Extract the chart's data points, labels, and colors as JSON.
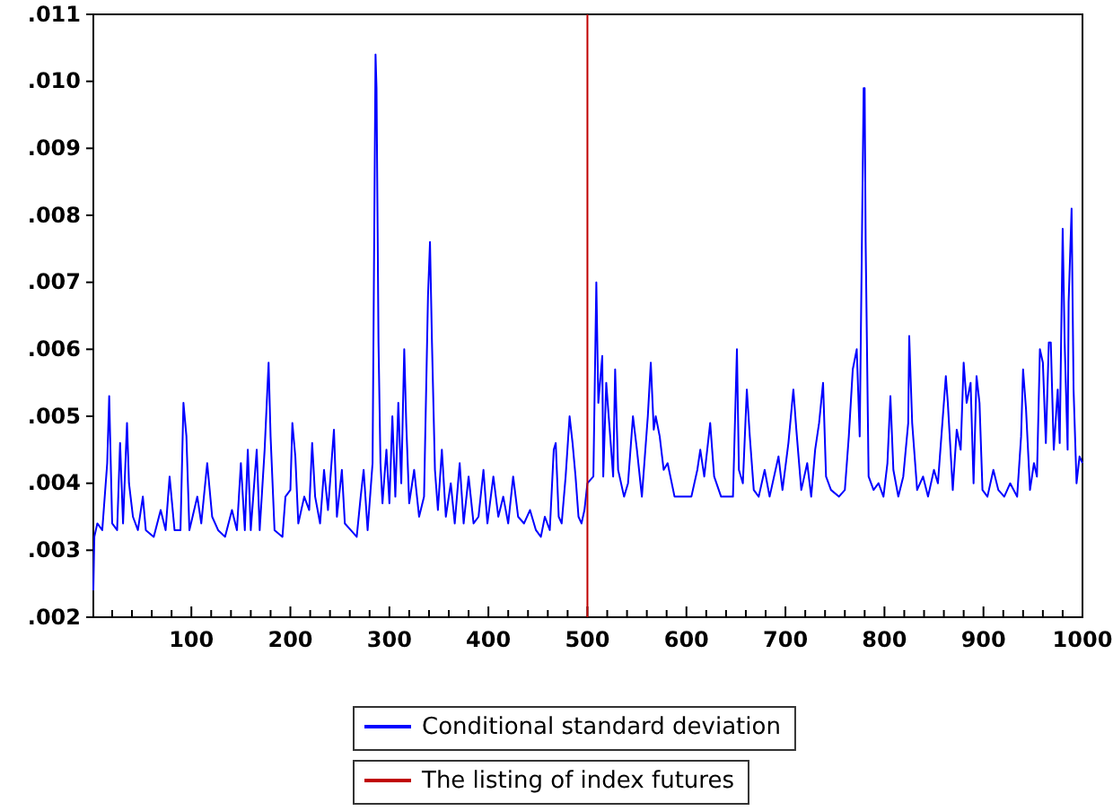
{
  "chart_data": {
    "type": "line",
    "xlim": [
      1,
      1000
    ],
    "ylim": [
      0.002,
      0.011
    ],
    "xticks": [
      {
        "value": 20,
        "label": null
      },
      {
        "value": 40,
        "label": null
      },
      {
        "value": 60,
        "label": null
      },
      {
        "value": 80,
        "label": null
      },
      100,
      {
        "value": 120,
        "label": null
      },
      {
        "value": 140,
        "label": null
      },
      {
        "value": 160,
        "label": null
      },
      {
        "value": 180,
        "label": null
      },
      200,
      {
        "value": 220,
        "label": null
      },
      {
        "value": 240,
        "label": null
      },
      {
        "value": 260,
        "label": null
      },
      {
        "value": 280,
        "label": null
      },
      300,
      {
        "value": 320,
        "label": null
      },
      {
        "value": 340,
        "label": null
      },
      {
        "value": 360,
        "label": null
      },
      {
        "value": 380,
        "label": null
      },
      400,
      {
        "value": 420,
        "label": null
      },
      {
        "value": 440,
        "label": null
      },
      {
        "value": 460,
        "label": null
      },
      {
        "value": 480,
        "label": null
      },
      500,
      {
        "value": 520,
        "label": null
      },
      {
        "value": 540,
        "label": null
      },
      {
        "value": 560,
        "label": null
      },
      {
        "value": 580,
        "label": null
      },
      600,
      {
        "value": 620,
        "label": null
      },
      {
        "value": 640,
        "label": null
      },
      {
        "value": 660,
        "label": null
      },
      {
        "value": 680,
        "label": null
      },
      700,
      {
        "value": 720,
        "label": null
      },
      {
        "value": 740,
        "label": null
      },
      {
        "value": 760,
        "label": null
      },
      {
        "value": 780,
        "label": null
      },
      800,
      {
        "value": 820,
        "label": null
      },
      {
        "value": 840,
        "label": null
      },
      {
        "value": 860,
        "label": null
      },
      {
        "value": 880,
        "label": null
      },
      900,
      {
        "value": 920,
        "label": null
      },
      {
        "value": 940,
        "label": null
      },
      {
        "value": 960,
        "label": null
      },
      {
        "value": 980,
        "label": null
      },
      1000
    ],
    "yticks": [
      {
        "value": 0.002,
        "label": ".002"
      },
      {
        "value": 0.003,
        "label": ".003"
      },
      {
        "value": 0.004,
        "label": ".004"
      },
      {
        "value": 0.005,
        "label": ".005"
      },
      {
        "value": 0.006,
        "label": ".006"
      },
      {
        "value": 0.007,
        "label": ".007"
      },
      {
        "value": 0.008,
        "label": ".008"
      },
      {
        "value": 0.009,
        "label": ".009"
      },
      {
        "value": 0.01,
        "label": ".010"
      },
      {
        "value": 0.011,
        "label": ".011"
      }
    ],
    "grid": false,
    "legend": "bottom",
    "line_style": "solid",
    "series": [
      {
        "name": "Conditional standard deviation",
        "color": "#0000ff",
        "x": [
          1,
          2,
          5,
          10,
          15,
          17,
          20,
          25,
          28,
          31,
          35,
          37,
          41,
          46,
          51,
          54,
          62,
          69,
          74,
          78,
          83,
          89,
          92,
          95,
          98,
          106,
          110,
          116,
          121,
          127,
          134,
          141,
          146,
          150,
          154,
          157,
          160,
          166,
          169,
          174,
          178,
          180,
          184,
          192,
          195,
          200,
          202,
          205,
          208,
          214,
          219,
          222,
          225,
          230,
          234,
          238,
          244,
          247,
          252,
          255,
          261,
          267,
          271,
          274,
          278,
          283,
          286,
          287,
          289,
          291,
          293,
          297,
          300,
          303,
          306,
          309,
          312,
          315,
          317,
          320,
          325,
          330,
          335,
          339,
          341,
          343,
          346,
          349,
          353,
          357,
          362,
          366,
          371,
          375,
          380,
          385,
          390,
          395,
          399,
          405,
          410,
          415,
          420,
          425,
          430,
          436,
          442,
          448,
          453,
          457,
          462,
          466,
          468,
          471,
          474,
          478,
          482,
          485,
          488,
          491,
          494,
          497,
          500,
          506,
          509,
          511,
          515,
          516,
          519,
          522,
          526,
          528,
          531,
          537,
          541,
          546,
          550,
          555,
          561,
          564,
          567,
          569,
          573,
          577,
          581,
          588,
          595,
          605,
          611,
          614,
          618,
          624,
          628,
          635,
          642,
          647,
          651,
          653,
          657,
          661,
          664,
          668,
          673,
          679,
          684,
          693,
          697,
          703,
          708,
          711,
          716,
          722,
          726,
          730,
          734,
          738,
          741,
          746,
          754,
          760,
          764,
          768,
          772,
          775,
          779,
          780,
          781,
          784,
          789,
          794,
          799,
          803,
          806,
          809,
          814,
          819,
          824,
          825,
          828,
          833,
          839,
          844,
          850,
          854,
          858,
          862,
          864,
          869,
          873,
          877,
          880,
          883,
          887,
          890,
          893,
          896,
          899,
          904,
          910,
          915,
          921,
          927,
          934,
          938,
          940,
          943,
          947,
          951,
          954,
          957,
          960,
          963,
          966,
          968,
          971,
          975,
          977,
          980,
          982,
          985,
          986,
          989,
          991,
          994,
          997,
          1000
        ],
        "values": [
          0.0024,
          0.0032,
          0.0034,
          0.0033,
          0.0043,
          0.0053,
          0.0034,
          0.0033,
          0.0046,
          0.0034,
          0.0049,
          0.004,
          0.0035,
          0.0033,
          0.0038,
          0.0033,
          0.0032,
          0.0036,
          0.0033,
          0.0041,
          0.0033,
          0.0033,
          0.0052,
          0.0047,
          0.0033,
          0.0038,
          0.0034,
          0.0043,
          0.0035,
          0.0033,
          0.0032,
          0.0036,
          0.0033,
          0.0043,
          0.0033,
          0.0045,
          0.0033,
          0.0045,
          0.0033,
          0.0045,
          0.0058,
          0.0047,
          0.0033,
          0.0032,
          0.0038,
          0.0039,
          0.0049,
          0.0044,
          0.0034,
          0.0038,
          0.0036,
          0.0046,
          0.0038,
          0.0034,
          0.0042,
          0.0036,
          0.0048,
          0.0035,
          0.0042,
          0.0034,
          0.0033,
          0.0032,
          0.0038,
          0.0042,
          0.0033,
          0.0043,
          0.0104,
          0.0099,
          0.0061,
          0.0043,
          0.0037,
          0.0045,
          0.0037,
          0.005,
          0.0038,
          0.0052,
          0.004,
          0.006,
          0.0049,
          0.0037,
          0.0042,
          0.0035,
          0.0038,
          0.0068,
          0.0076,
          0.0061,
          0.0042,
          0.0036,
          0.0045,
          0.0035,
          0.004,
          0.0034,
          0.0043,
          0.0034,
          0.0041,
          0.0034,
          0.0035,
          0.0042,
          0.0034,
          0.0041,
          0.0035,
          0.0038,
          0.0034,
          0.0041,
          0.0035,
          0.0034,
          0.0036,
          0.0033,
          0.0032,
          0.0035,
          0.0033,
          0.0045,
          0.0046,
          0.0035,
          0.0034,
          0.0041,
          0.005,
          0.0046,
          0.0041,
          0.0035,
          0.0034,
          0.0036,
          0.004,
          0.0041,
          0.007,
          0.0052,
          0.0059,
          0.0041,
          0.0055,
          0.0049,
          0.0041,
          0.0057,
          0.0042,
          0.0038,
          0.004,
          0.005,
          0.0045,
          0.0038,
          0.005,
          0.0058,
          0.0048,
          0.005,
          0.0047,
          0.0042,
          0.0043,
          0.0038,
          0.0038,
          0.0038,
          0.0042,
          0.0045,
          0.0041,
          0.0049,
          0.0041,
          0.0038,
          0.0038,
          0.0038,
          0.006,
          0.0042,
          0.004,
          0.0054,
          0.0047,
          0.0039,
          0.0038,
          0.0042,
          0.0038,
          0.0044,
          0.0039,
          0.0046,
          0.0054,
          0.0048,
          0.0039,
          0.0043,
          0.0038,
          0.0045,
          0.0049,
          0.0055,
          0.0041,
          0.0039,
          0.0038,
          0.0039,
          0.0047,
          0.0057,
          0.006,
          0.0047,
          0.0099,
          0.0099,
          0.0076,
          0.0041,
          0.0039,
          0.004,
          0.0038,
          0.0043,
          0.0053,
          0.0042,
          0.0038,
          0.0041,
          0.0049,
          0.0062,
          0.0049,
          0.0039,
          0.0041,
          0.0038,
          0.0042,
          0.004,
          0.0048,
          0.0056,
          0.0052,
          0.0039,
          0.0048,
          0.0045,
          0.0058,
          0.0052,
          0.0055,
          0.004,
          0.0056,
          0.0052,
          0.0039,
          0.0038,
          0.0042,
          0.0039,
          0.0038,
          0.004,
          0.0038,
          0.0047,
          0.0057,
          0.0051,
          0.0039,
          0.0043,
          0.0041,
          0.006,
          0.0058,
          0.0046,
          0.0061,
          0.0061,
          0.0045,
          0.0054,
          0.0046,
          0.0078,
          0.0061,
          0.0045,
          0.0067,
          0.0081,
          0.0054,
          0.004,
          0.0044,
          0.0043
        ]
      },
      {
        "name": "The listing of index futures",
        "type": "line",
        "color": "#c00000",
        "x": [
          500,
          500
        ],
        "values": [
          0.002,
          0.011
        ]
      }
    ]
  }
}
